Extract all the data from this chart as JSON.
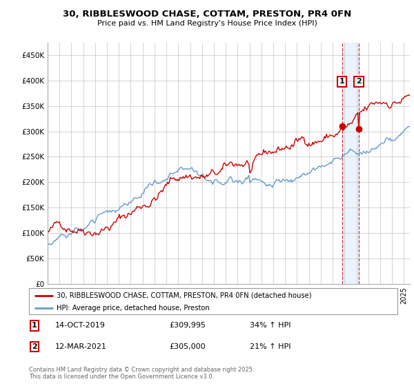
{
  "title": "30, RIBBLESWOOD CHASE, COTTAM, PRESTON, PR4 0FN",
  "subtitle": "Price paid vs. HM Land Registry's House Price Index (HPI)",
  "legend_line1": "30, RIBBLESWOOD CHASE, COTTAM, PRESTON, PR4 0FN (detached house)",
  "legend_line2": "HPI: Average price, detached house, Preston",
  "footnote": "Contains HM Land Registry data © Crown copyright and database right 2025.\nThis data is licensed under the Open Government Licence v3.0.",
  "marker1_date": "14-OCT-2019",
  "marker1_price": "£309,995",
  "marker1_hpi": "34% ↑ HPI",
  "marker2_date": "12-MAR-2021",
  "marker2_price": "£305,000",
  "marker2_hpi": "21% ↑ HPI",
  "red_color": "#cc0000",
  "blue_color": "#6699cc",
  "background_color": "#ffffff",
  "grid_color": "#cccccc",
  "ylim": [
    0,
    475000
  ],
  "yticks": [
    0,
    50000,
    100000,
    150000,
    200000,
    250000,
    300000,
    350000,
    400000,
    450000
  ],
  "ytick_labels": [
    "£0",
    "£50K",
    "£100K",
    "£150K",
    "£200K",
    "£250K",
    "£300K",
    "£350K",
    "£400K",
    "£450K"
  ]
}
